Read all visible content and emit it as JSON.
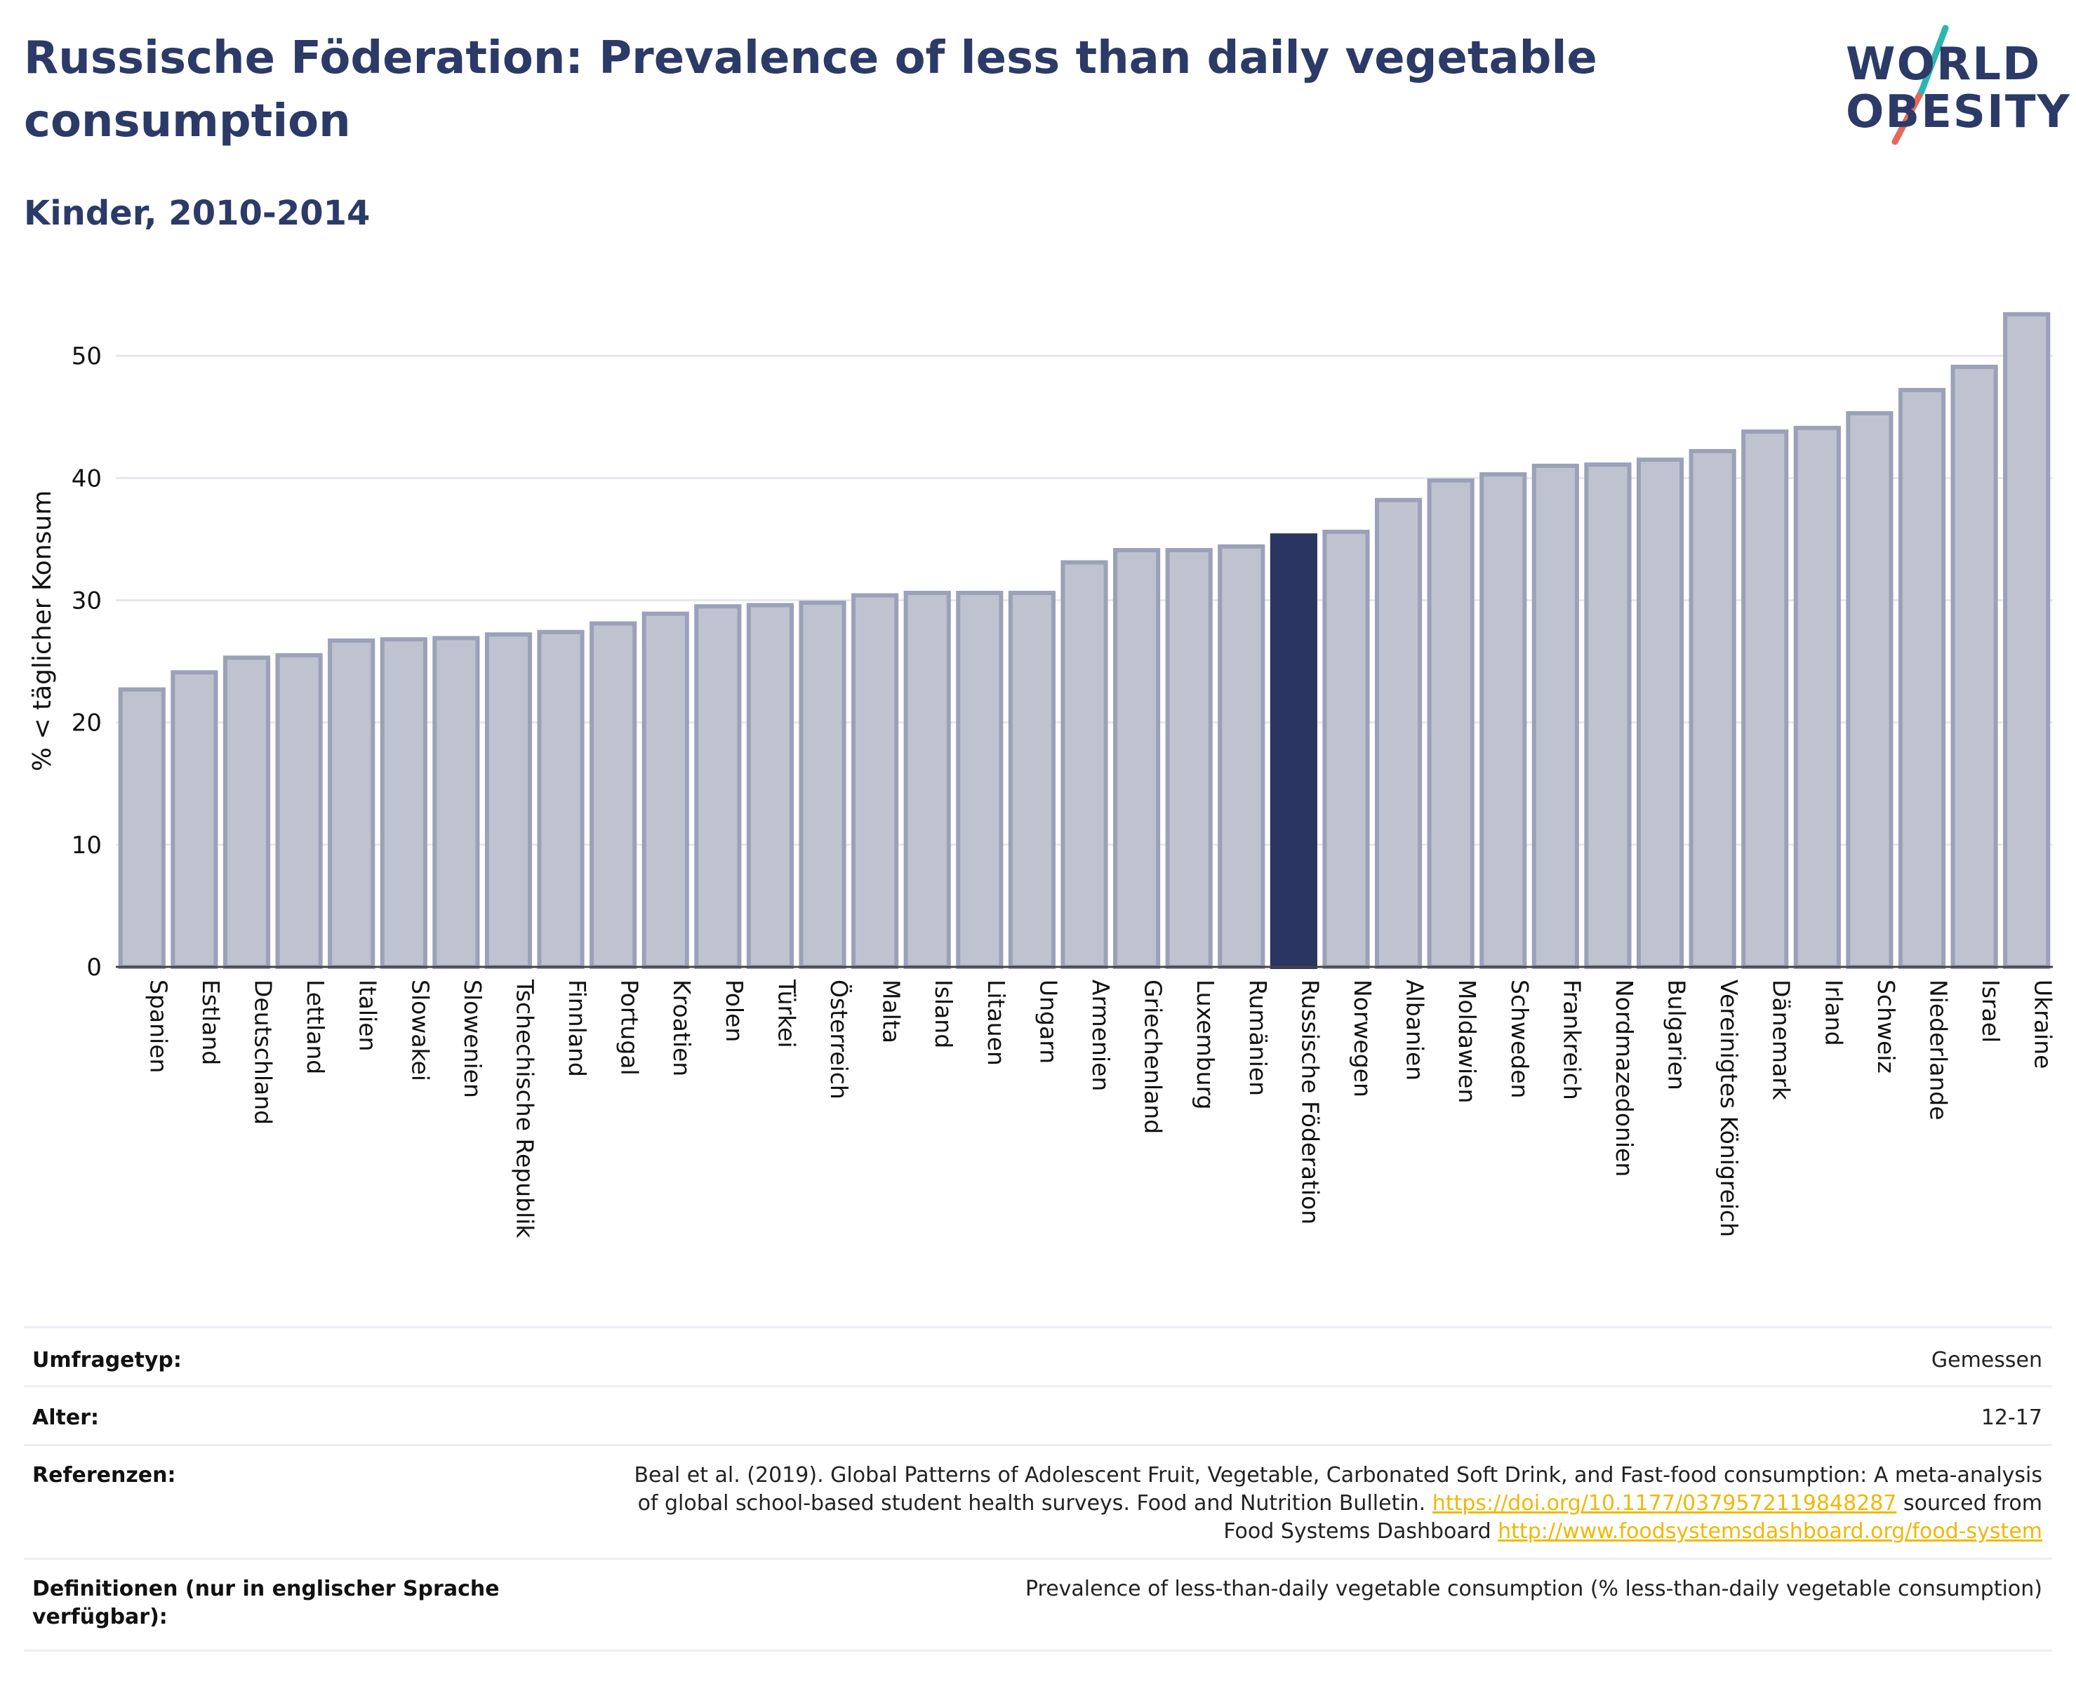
{
  "title": "Russische Föderation: Prevalence of less than daily vegetable consumption",
  "subtitle": "Kinder, 2010-2014",
  "logo": {
    "line1": "WORLD",
    "line2": "OBESITY",
    "accent_teal": "#2cb6b0",
    "accent_red": "#e8675a"
  },
  "colors": {
    "bar": "#bfc3d0",
    "bar_edge": "#9aa1b8",
    "highlight": "#2b3561",
    "title": "#2b3a67",
    "grid": "#e6e8ee"
  },
  "chart_data": {
    "type": "bar",
    "ylabel": "% < täglicher Konsum",
    "xlabel": "",
    "ylim": [
      0,
      55
    ],
    "yticks": [
      0,
      10,
      20,
      30,
      40,
      50
    ],
    "highlight": "Russische Föderation",
    "categories": [
      "Spanien",
      "Estland",
      "Deutschland",
      "Lettland",
      "Italien",
      "Slowakei",
      "Slowenien",
      "Tschechische Republik",
      "Finnland",
      "Portugal",
      "Kroatien",
      "Polen",
      "Türkei",
      "Österreich",
      "Malta",
      "Island",
      "Litauen",
      "Ungarn",
      "Armenien",
      "Griechenland",
      "Luxemburg",
      "Rumänien",
      "Russische Föderation",
      "Norwegen",
      "Albanien",
      "Moldawien",
      "Schweden",
      "Frankreich",
      "Nordmazedonien",
      "Bulgarien",
      "Vereinigtes Königreich",
      "Dänemark",
      "Irland",
      "Schweiz",
      "Niederlande",
      "Israel",
      "Ukraine"
    ],
    "values": [
      22.7,
      24.1,
      25.3,
      25.5,
      26.7,
      26.8,
      26.9,
      27.2,
      27.4,
      28.1,
      28.9,
      29.5,
      29.6,
      29.8,
      30.4,
      30.6,
      30.6,
      30.6,
      33.1,
      34.1,
      34.1,
      34.4,
      35.3,
      35.6,
      38.2,
      39.8,
      40.3,
      41.0,
      41.1,
      41.5,
      42.2,
      43.8,
      44.1,
      45.3,
      47.2,
      49.1,
      53.4
    ]
  },
  "meta": {
    "survey_label": "Umfragetyp:",
    "survey_value": "Gemessen",
    "age_label": "Alter:",
    "age_value": "12-17",
    "ref_label": "Referenzen:",
    "ref_line1": "Beal et al. (2019). Global Patterns of Adolescent Fruit, Vegetable, Carbonated Soft Drink, and Fast-food consumption: A meta-analysis",
    "ref_line2_a": "of global school-based student health surveys. Food and Nutrition Bulletin. ",
    "ref_link1": "https://doi.org/10.1177/0379572119848287",
    "ref_line2_b": " sourced from",
    "ref_line3_a": "Food Systems Dashboard ",
    "ref_link2": "http://www.foodsystemsdashboard.org/food-system",
    "def_label": "Definitionen (nur in englischer Sprache verfügbar):",
    "def_value": "Prevalence of less-than-daily vegetable consumption (% less-than-daily vegetable consumption)"
  }
}
